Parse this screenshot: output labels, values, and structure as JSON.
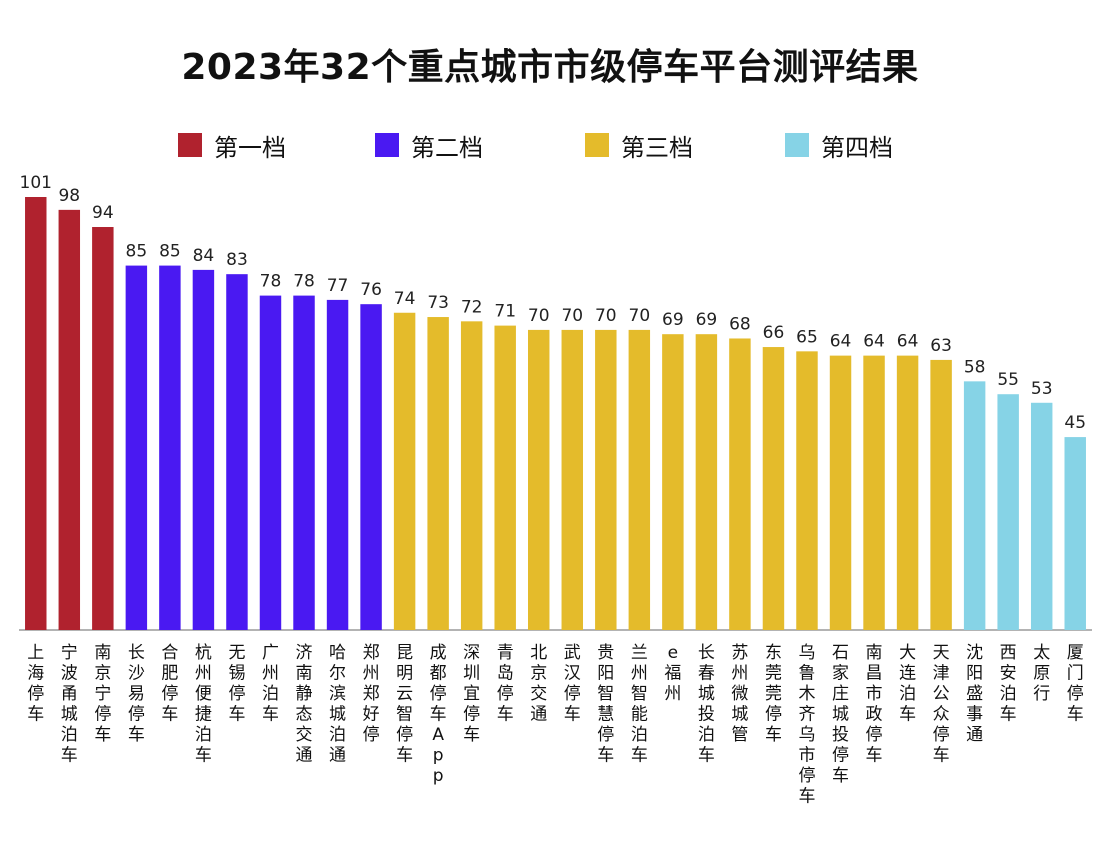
{
  "chart_data": {
    "type": "bar",
    "title": "2023年32个重点城市市级停车平台测评结果",
    "legend": [
      {
        "name": "第一档",
        "color": "#b0222e"
      },
      {
        "name": "第二档",
        "color": "#4a19f2"
      },
      {
        "name": "第三档",
        "color": "#e4bb2b"
      },
      {
        "name": "第四档",
        "color": "#86d3e6"
      }
    ],
    "ylim": [
      0,
      101
    ],
    "grid": false,
    "legend_position": "top",
    "categories": [
      "上海停车",
      "宁波甬城泊车",
      "南京宁停车",
      "长沙易停车",
      "合肥停车",
      "杭州便捷泊车",
      "无锡停车",
      "广州泊车",
      "济南静态交通",
      "哈尔滨城泊通",
      "郑州郑好停",
      "昆明云智停车",
      "成都停车App",
      "深圳宜停车",
      "青岛停车",
      "北京交通",
      "武汉停车",
      "贵阳智慧停车",
      "兰州智能泊车",
      "e福州",
      "长春城投泊车",
      "苏州微城管",
      "东莞莞停车",
      "乌鲁木齐乌市停车",
      "石家庄城投停车",
      "南昌市政停车",
      "大连泊车",
      "天津公众停车",
      "沈阳盛事通",
      "西安泊车",
      "太原行",
      "厦门停车"
    ],
    "values": [
      101,
      98,
      94,
      85,
      85,
      84,
      83,
      78,
      78,
      77,
      76,
      74,
      73,
      72,
      71,
      70,
      70,
      70,
      70,
      69,
      69,
      68,
      66,
      65,
      64,
      64,
      64,
      63,
      58,
      55,
      53,
      45
    ],
    "tiers": [
      1,
      1,
      1,
      2,
      2,
      2,
      2,
      2,
      2,
      2,
      2,
      3,
      3,
      3,
      3,
      3,
      3,
      3,
      3,
      3,
      3,
      3,
      3,
      3,
      3,
      3,
      3,
      3,
      4,
      4,
      4,
      4
    ]
  }
}
